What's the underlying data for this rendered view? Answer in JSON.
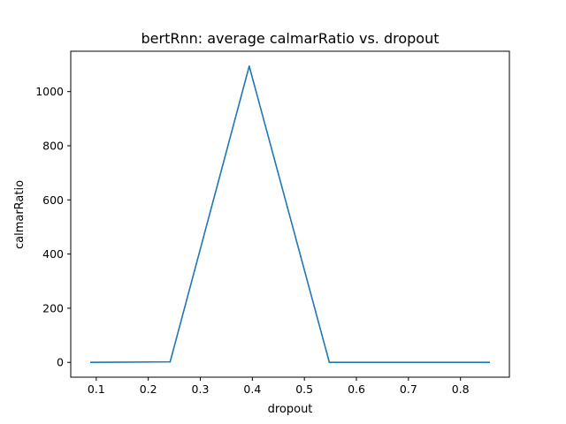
{
  "chart_data": {
    "type": "line",
    "title": "bertRnn: average calmarRatio vs. dropout",
    "xlabel": "dropout",
    "ylabel": "calmarRatio",
    "xlim": [
      0.051,
      0.894
    ],
    "ylim": [
      -54.7,
      1149.0
    ],
    "xticks": [
      0.1,
      0.2,
      0.3,
      0.4,
      0.5,
      0.6,
      0.7,
      0.8
    ],
    "xtick_labels": [
      "0.1",
      "0.2",
      "0.3",
      "0.4",
      "0.5",
      "0.6",
      "0.7",
      "0.8"
    ],
    "yticks": [
      0,
      200,
      400,
      600,
      800,
      1000
    ],
    "ytick_labels": [
      "0",
      "200",
      "400",
      "600",
      "800",
      "1000"
    ],
    "series": [
      {
        "name": "calmarRatio",
        "color": "#1f77b4",
        "x": [
          0.09,
          0.242,
          0.394,
          0.548,
          0.855
        ],
        "y": [
          0,
          2,
          1094,
          0,
          0
        ]
      }
    ]
  }
}
